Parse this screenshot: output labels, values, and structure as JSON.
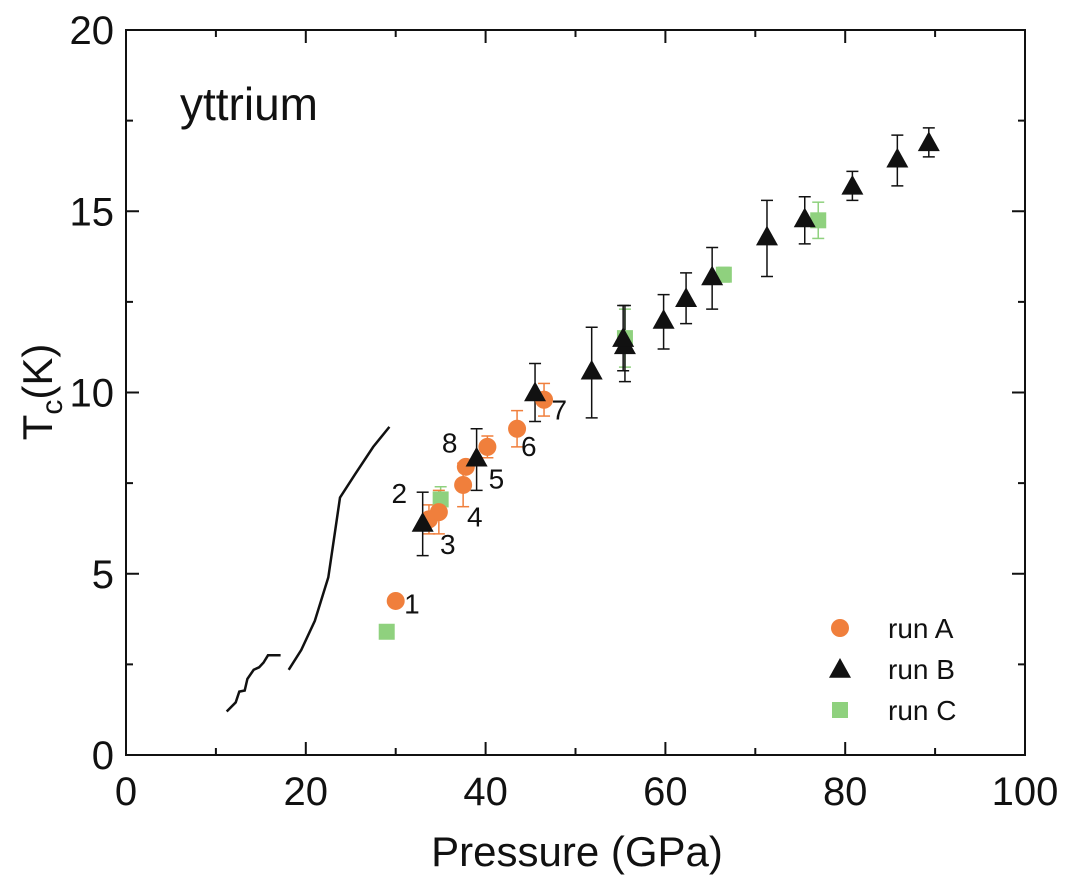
{
  "chart_data": {
    "type": "scatter",
    "title": "",
    "annotation": "yttrium",
    "xlabel": "Pressure (GPa)",
    "ylabel_main": "T",
    "ylabel_sub": "c",
    "ylabel_rest": "(K)",
    "xlim": [
      0,
      100
    ],
    "ylim": [
      0,
      20
    ],
    "xticks": [
      0,
      20,
      40,
      60,
      80,
      100
    ],
    "yticks": [
      0,
      5,
      10,
      15,
      20
    ],
    "xminor": [
      10,
      30,
      50,
      70,
      90
    ],
    "yminor": [
      2.5,
      7.5,
      12.5,
      17.5
    ],
    "grid": false,
    "legend_position": "bottom-right",
    "series": [
      {
        "name": "run A",
        "marker": "circle",
        "color": "#f07f3c",
        "points": [
          {
            "x": 30.0,
            "y": 4.25,
            "label": "1"
          },
          {
            "x": 33.7,
            "y": 6.5,
            "err": 0.4
          },
          {
            "x": 34.8,
            "y": 6.7,
            "err": 0.6
          },
          {
            "x": 37.5,
            "y": 7.45,
            "err": 0.6
          },
          {
            "x": 37.8,
            "y": 7.95,
            "label": "8"
          },
          {
            "x": 40.2,
            "y": 8.5,
            "err": 0.3
          },
          {
            "x": 43.5,
            "y": 9.0,
            "err": 0.5
          },
          {
            "x": 46.5,
            "y": 9.8,
            "err": 0.45
          }
        ]
      },
      {
        "name": "run B",
        "marker": "triangle",
        "color": "#111111",
        "points": [
          {
            "x": 33.0,
            "y": 6.4,
            "err_up": 0.85,
            "err_down": 0.9
          },
          {
            "x": 39.0,
            "y": 8.2,
            "err_up": 0.8,
            "err_down": 0.9
          },
          {
            "x": 45.5,
            "y": 10.0,
            "err_up": 0.8,
            "err_down": 0.8
          },
          {
            "x": 51.8,
            "y": 10.6,
            "err_up": 1.2,
            "err_down": 1.3
          },
          {
            "x": 55.5,
            "y": 11.3,
            "err_up": 1.1,
            "err_down": 1.0
          },
          {
            "x": 55.3,
            "y": 11.5,
            "err_up": 0.9,
            "err_down": 0.9
          },
          {
            "x": 59.8,
            "y": 12.0,
            "err_up": 0.7,
            "err_down": 0.8
          },
          {
            "x": 62.3,
            "y": 12.6,
            "err_up": 0.7,
            "err_down": 0.7
          },
          {
            "x": 65.2,
            "y": 13.2,
            "err_up": 0.8,
            "err_down": 0.9
          },
          {
            "x": 71.3,
            "y": 14.3,
            "err_up": 1.0,
            "err_down": 1.1
          },
          {
            "x": 75.5,
            "y": 14.8,
            "err_up": 0.6,
            "err_down": 0.7
          },
          {
            "x": 80.8,
            "y": 15.7,
            "err_up": 0.4,
            "err_down": 0.4
          },
          {
            "x": 85.8,
            "y": 16.45,
            "err_up": 0.65,
            "err_down": 0.75
          },
          {
            "x": 89.3,
            "y": 16.9,
            "err_up": 0.4,
            "err_down": 0.4
          }
        ]
      },
      {
        "name": "run C",
        "marker": "square",
        "color": "#8fd17e",
        "points": [
          {
            "x": 29.0,
            "y": 3.4
          },
          {
            "x": 35.0,
            "y": 7.05,
            "err": 0.35
          },
          {
            "x": 55.5,
            "y": 11.5,
            "err": 0.8
          },
          {
            "x": 66.5,
            "y": 13.25,
            "err": 0.2
          },
          {
            "x": 77.0,
            "y": 14.75,
            "err": 0.5
          }
        ]
      }
    ],
    "point_labels": [
      {
        "text": "1",
        "x": 31.8,
        "y": 3.9
      },
      {
        "text": "2",
        "x": 30.4,
        "y": 6.95
      },
      {
        "text": "3",
        "x": 35.8,
        "y": 5.55
      },
      {
        "text": "4",
        "x": 38.8,
        "y": 6.3
      },
      {
        "text": "5",
        "x": 41.2,
        "y": 7.35
      },
      {
        "text": "6",
        "x": 44.8,
        "y": 8.25
      },
      {
        "text": "7",
        "x": 48.2,
        "y": 9.25
      },
      {
        "text": "8",
        "x": 36.0,
        "y": 8.35
      }
    ],
    "reference_curve": [
      [
        11.2,
        1.2
      ],
      [
        12.2,
        1.45
      ],
      [
        12.6,
        1.75
      ],
      [
        13.2,
        1.78
      ],
      [
        13.5,
        2.1
      ],
      [
        14.2,
        2.35
      ],
      [
        14.8,
        2.42
      ],
      [
        15.3,
        2.55
      ],
      [
        15.8,
        2.75
      ],
      [
        17.2,
        2.75
      ],
      [
        18.1,
        2.35
      ],
      [
        19.5,
        2.9
      ],
      [
        21.0,
        3.7
      ],
      [
        22.5,
        4.9
      ],
      [
        23.3,
        6.25
      ],
      [
        23.8,
        7.1
      ],
      [
        25.5,
        7.75
      ],
      [
        27.5,
        8.5
      ],
      [
        29.3,
        9.05
      ]
    ]
  }
}
